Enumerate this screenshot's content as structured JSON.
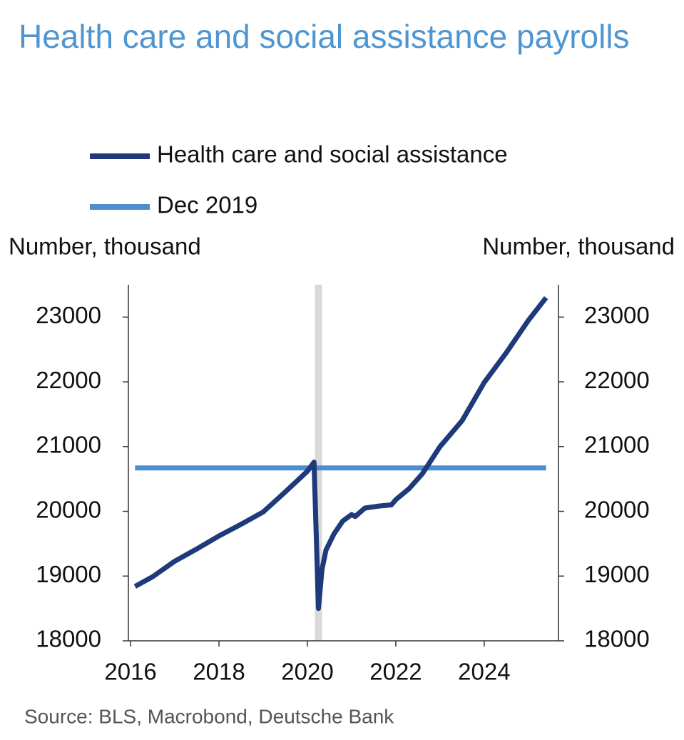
{
  "chart_data": {
    "type": "line",
    "title": "Health care and social assistance payrolls",
    "y_label": "Number, thousand",
    "y2_label": "Number, thousand",
    "source": "Source: BLS, Macrobond, Deutsche Bank",
    "xlim": [
      2015.95,
      2025.68
    ],
    "xticks": [
      2016,
      2018,
      2020,
      2022,
      2024
    ],
    "ylim": [
      18000,
      23500
    ],
    "yticks": [
      18000,
      19000,
      20000,
      21000,
      22000,
      23000
    ],
    "y2lim": [
      18000,
      23500
    ],
    "y2ticks": [
      18000,
      19000,
      20000,
      21000,
      22000,
      23000
    ],
    "shaded_x": [
      2020.17,
      2020.33
    ],
    "shade_color": "#d9d9d9",
    "series": [
      {
        "name": "Health care and social assistance",
        "color": "#1f3a7a",
        "x": [
          2016.1,
          2016.5,
          2017.0,
          2017.5,
          2018.0,
          2018.5,
          2019.0,
          2019.5,
          2020.0,
          2020.15,
          2020.25,
          2020.33,
          2020.42,
          2020.6,
          2020.8,
          2021.0,
          2021.08,
          2021.3,
          2021.6,
          2021.9,
          2022.0,
          2022.3,
          2022.6,
          2023.0,
          2023.5,
          2024.0,
          2024.5,
          2025.0,
          2025.4
        ],
        "values": [
          18840,
          18990,
          19230,
          19420,
          19620,
          19800,
          19990,
          20300,
          20620,
          20760,
          18500,
          19100,
          19400,
          19650,
          19850,
          19950,
          19920,
          20050,
          20080,
          20100,
          20180,
          20350,
          20580,
          21000,
          21400,
          21990,
          22450,
          22950,
          23300
        ]
      },
      {
        "name": "Dec 2019",
        "color": "#4a8fcf",
        "x": [
          2016.1,
          2025.4
        ],
        "values": [
          20670,
          20670
        ]
      }
    ]
  }
}
